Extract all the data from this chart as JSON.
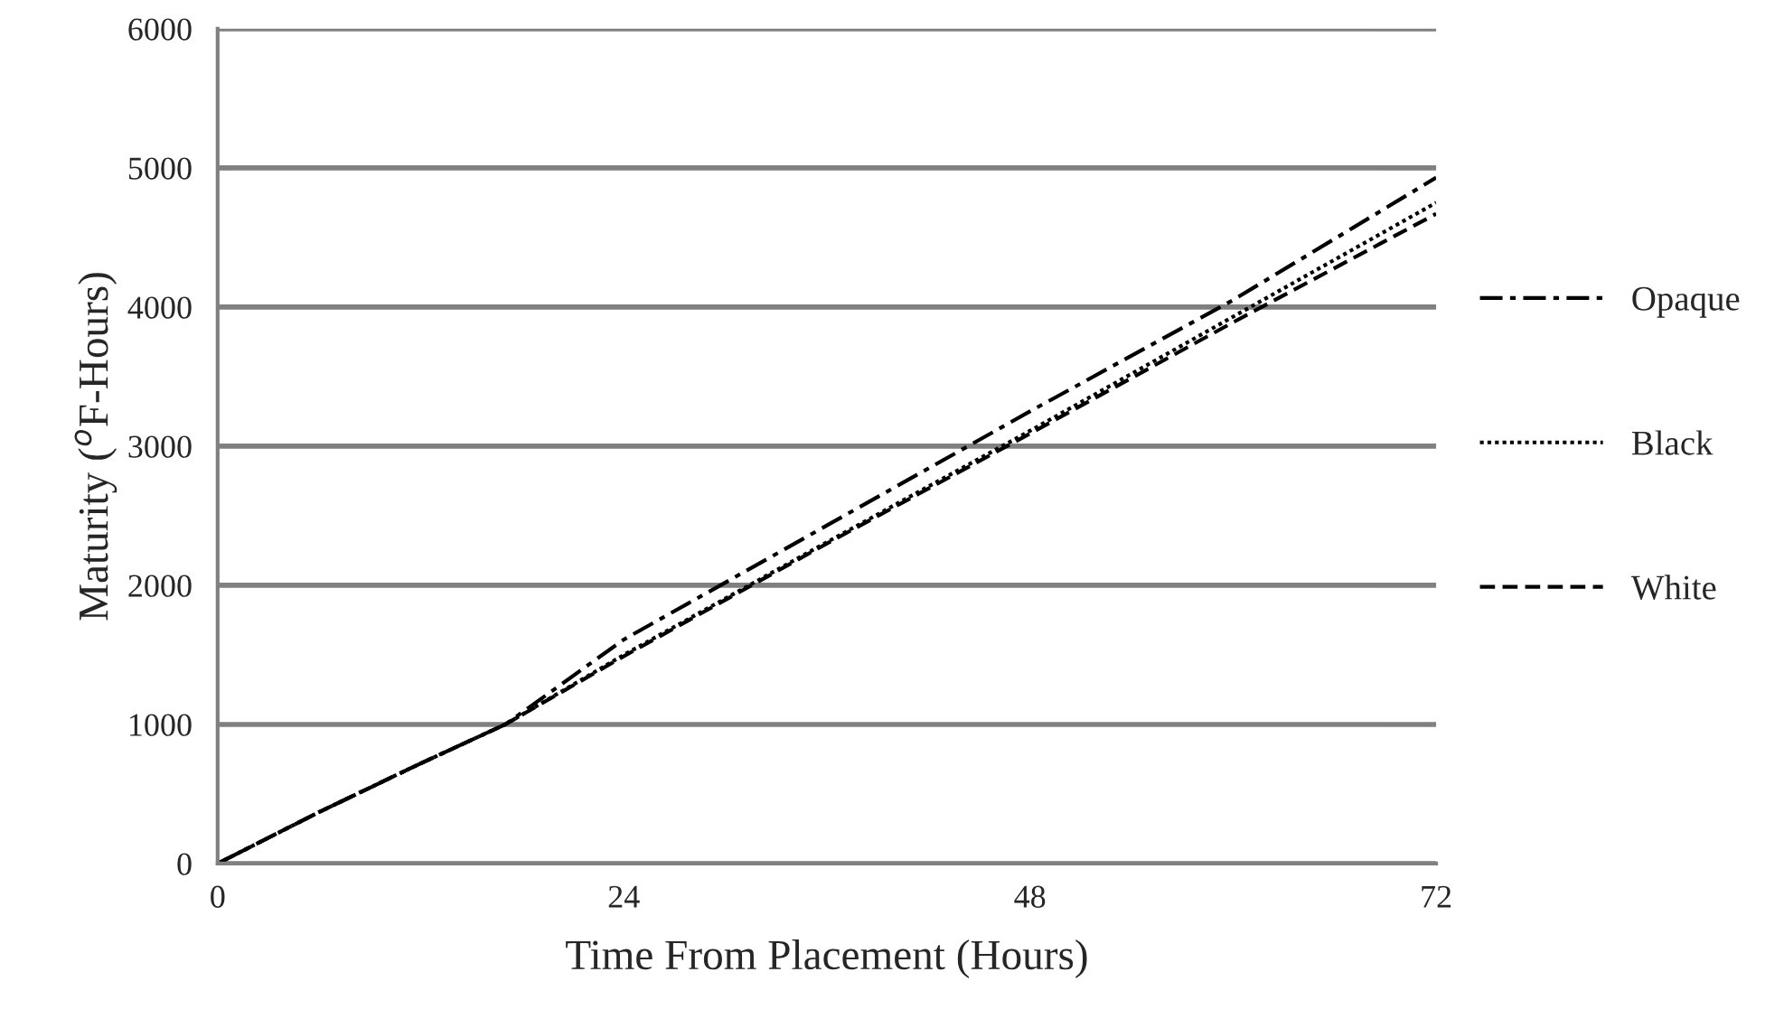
{
  "chart_data": {
    "type": "line",
    "xlabel": "Time From Placement (Hours)",
    "ylabel": "Maturity ($^{o}$F-Hours)",
    "x": [
      0,
      6,
      12,
      17,
      24,
      36,
      48,
      60,
      72
    ],
    "series": [
      {
        "name": "Opaque",
        "color": "#000000",
        "line_style": "dashdot",
        "values": [
          0,
          370,
          720,
          1000,
          1610,
          2430,
          3250,
          4050,
          4930
        ]
      },
      {
        "name": "Black",
        "color": "#000000",
        "line_style": "dotted",
        "values": [
          0,
          370,
          720,
          1000,
          1500,
          2310,
          3110,
          3930,
          4750
        ]
      },
      {
        "name": "White",
        "color": "#000000",
        "line_style": "dashed",
        "values": [
          0,
          370,
          720,
          1000,
          1490,
          2300,
          3090,
          3890,
          4670
        ]
      }
    ],
    "xlim": [
      0,
      72
    ],
    "xticks": [
      0,
      24,
      48,
      72
    ],
    "ylim": [
      0,
      6000
    ],
    "yticks": [
      0,
      1000,
      2000,
      3000,
      4000,
      5000,
      6000
    ],
    "grid": "y",
    "legend": "right",
    "marker": "none"
  }
}
